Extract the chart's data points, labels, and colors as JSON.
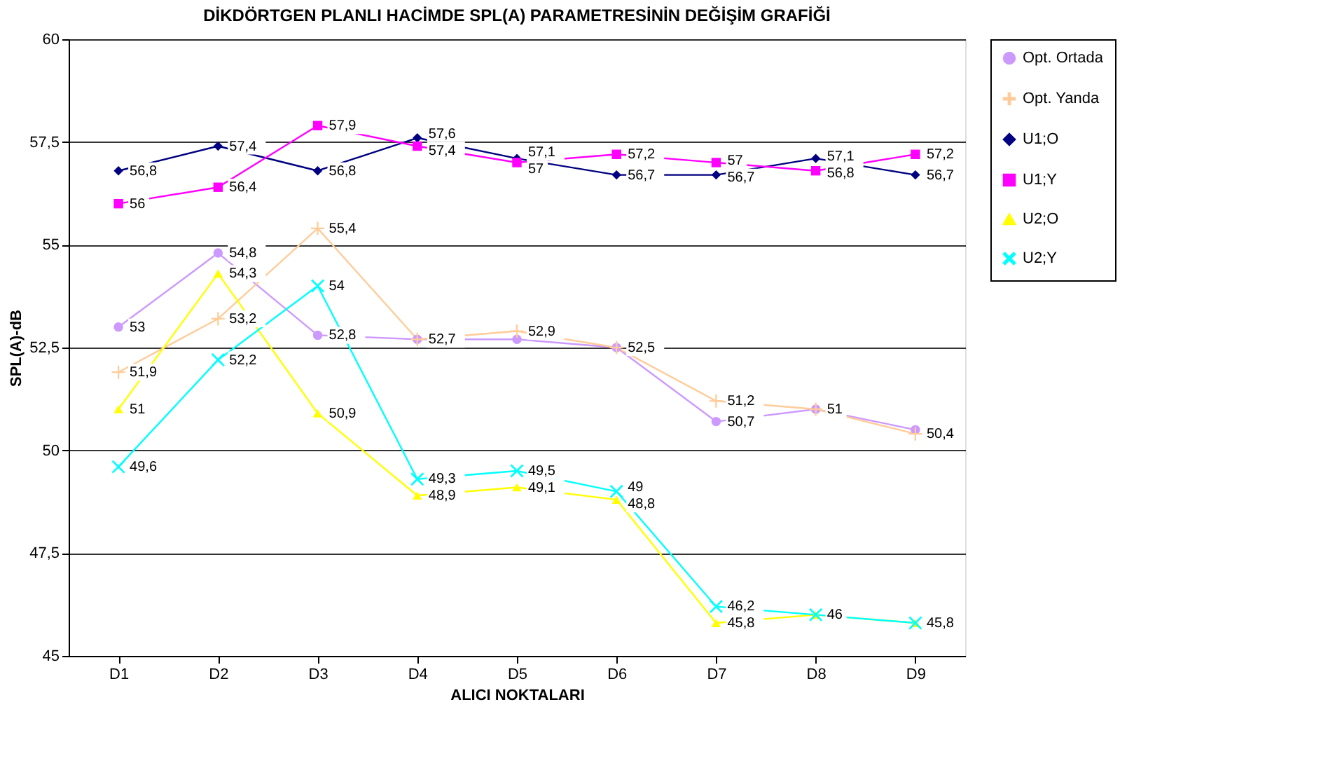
{
  "chart_data": {
    "type": "line",
    "title": "DİKDÖRTGEN PLANLI HACİMDE SPL(A) PARAMETRESİNİN DEĞİŞİM GRAFİĞİ",
    "xlabel": "ALICI NOKTALARI",
    "ylabel": "SPL(A)-dB",
    "categories": [
      "D1",
      "D2",
      "D3",
      "D4",
      "D5",
      "D6",
      "D7",
      "D8",
      "D9"
    ],
    "series": [
      {
        "name": "Opt. Ortada",
        "color": "#cc99ff",
        "marker": "circle",
        "values": [
          53,
          54.8,
          52.8,
          52.7,
          52.7,
          52.5,
          50.7,
          51,
          50.5
        ],
        "value_labels": [
          "53",
          "54,8",
          "52,8",
          "52,7",
          null,
          null,
          "50,7",
          "51",
          null
        ]
      },
      {
        "name": "Opt. Yanda",
        "color": "#ffcc99",
        "marker": "plus",
        "values": [
          51.9,
          53.2,
          55.4,
          52.7,
          52.9,
          52.5,
          51.2,
          51,
          50.4
        ],
        "value_labels": [
          "51,9",
          "53,2",
          "55,4",
          null,
          "52,9",
          "52,5",
          "51,2",
          null,
          "50,4"
        ]
      },
      {
        "name": "U1;O",
        "color": "#000080",
        "marker": "diamond",
        "values": [
          56.8,
          57.4,
          56.8,
          57.6,
          57.1,
          56.7,
          56.7,
          57.1,
          56.7
        ],
        "value_labels": [
          "56,8",
          "57,4",
          "56,8",
          "57,6",
          "57,1",
          "56,7",
          "56,7",
          "57,1",
          "56,7"
        ]
      },
      {
        "name": "U1;Y",
        "color": "#ff00ff",
        "marker": "square",
        "values": [
          56,
          56.4,
          57.9,
          57.4,
          57,
          57.2,
          57,
          56.8,
          57.2
        ],
        "value_labels": [
          "56",
          "56,4",
          "57,9",
          "57,4",
          "57",
          "57,2",
          "57",
          "56,8",
          "57,2"
        ]
      },
      {
        "name": "U2;O",
        "color": "#ffff00",
        "marker": "triangle",
        "values": [
          51,
          54.3,
          50.9,
          48.9,
          49.1,
          48.8,
          45.8,
          46,
          45.8
        ],
        "value_labels": [
          "51",
          "54,3",
          "50,9",
          "48,9",
          "49,1",
          "48,8",
          "45,8",
          "46",
          "45,8"
        ]
      },
      {
        "name": "U2;Y",
        "color": "#00ffff",
        "marker": "cross",
        "values": [
          49.6,
          52.2,
          54,
          49.3,
          49.5,
          49,
          46.2,
          46,
          45.8
        ],
        "value_labels": [
          "49,6",
          "52,2",
          "54",
          "49,3",
          "49,5",
          "49",
          "46,2",
          null,
          null
        ]
      }
    ],
    "ylim": [
      45,
      60
    ],
    "yticks": [
      45,
      {
        "value": 47.5,
        "label": "47,5"
      },
      50,
      {
        "value": 52.5,
        "label": "52,5"
      },
      55,
      {
        "value": 57.5,
        "label": "57,5"
      },
      60
    ],
    "grid": "y",
    "legend": "right"
  }
}
